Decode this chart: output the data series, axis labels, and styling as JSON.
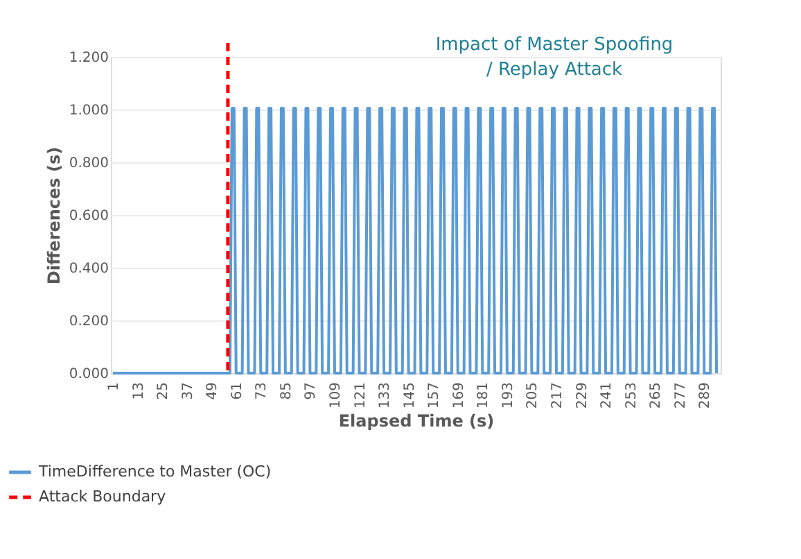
{
  "chart_data": {
    "type": "line",
    "xlabel": "Elapsed Time (s)",
    "ylabel": "Differences  (s)",
    "annotations": [
      "Impact of Master Spoofing / Replay Attack"
    ],
    "series": [
      {
        "name": "TimeDifference to Master (OC)",
        "color": "#5b9bd5",
        "x": [
          1,
          58,
          59,
          60,
          61,
          64,
          65,
          66,
          67,
          70,
          71,
          72,
          73,
          76,
          77,
          78,
          79,
          82,
          83,
          84,
          85,
          88,
          89,
          90,
          91,
          94,
          95,
          96,
          97,
          100,
          101,
          102,
          103,
          106,
          107,
          108,
          109,
          112,
          113,
          114,
          115,
          118,
          119,
          120,
          121,
          124,
          125,
          126,
          127,
          130,
          131,
          132,
          133,
          136,
          137,
          138,
          139,
          142,
          143,
          144,
          145,
          148,
          149,
          150,
          151,
          154,
          155,
          156,
          157,
          160,
          161,
          162,
          163,
          166,
          167,
          168,
          169,
          172,
          173,
          174,
          175,
          178,
          179,
          180,
          181,
          184,
          185,
          186,
          187,
          190,
          191,
          192,
          193,
          196,
          197,
          198,
          199,
          202,
          203,
          204,
          205,
          208,
          209,
          210,
          211,
          214,
          215,
          216,
          217,
          220,
          221,
          222,
          223,
          226,
          227,
          228,
          229,
          232,
          233,
          234,
          235,
          238,
          239,
          240,
          241,
          244,
          245,
          246,
          247,
          250,
          251,
          252,
          253,
          256,
          257,
          258,
          259,
          262,
          263,
          264,
          265,
          268,
          269,
          270,
          271,
          274,
          275,
          276,
          277,
          280,
          281,
          282,
          283,
          286,
          287,
          288,
          289,
          292,
          293,
          294,
          295
        ],
        "values": [
          0,
          0,
          1.005,
          1.005,
          0,
          0,
          1.005,
          1.005,
          0,
          0,
          1.005,
          1.005,
          0,
          0,
          1.005,
          1.005,
          0,
          0,
          1.005,
          1.005,
          0,
          0,
          1.005,
          1.005,
          0,
          0,
          1.005,
          1.005,
          0,
          0,
          1.005,
          1.005,
          0,
          0,
          1.005,
          1.005,
          0,
          0,
          1.005,
          1.005,
          0,
          0,
          1.005,
          1.005,
          0,
          0,
          1.005,
          1.005,
          0,
          0,
          1.005,
          1.005,
          0,
          0,
          1.005,
          1.005,
          0,
          0,
          1.005,
          1.005,
          0,
          0,
          1.005,
          1.005,
          0,
          0,
          1.005,
          1.005,
          0,
          0,
          1.005,
          1.005,
          0,
          0,
          1.005,
          1.005,
          0,
          0,
          1.005,
          1.005,
          0,
          0,
          1.005,
          1.005,
          0,
          0,
          1.005,
          1.005,
          0,
          0,
          1.005,
          1.005,
          0,
          0,
          1.005,
          1.005,
          0,
          0,
          1.005,
          1.005,
          0,
          0,
          1.005,
          1.005,
          0,
          0,
          1.005,
          1.005,
          0,
          0,
          1.005,
          1.005,
          0,
          0,
          1.005,
          1.005,
          0,
          0,
          1.005,
          1.005,
          0,
          0,
          1.005,
          1.005,
          0,
          0,
          1.005,
          1.005,
          0,
          0,
          1.005,
          1.005,
          0,
          0,
          1.005,
          1.005,
          0,
          0,
          1.005,
          1.005,
          0,
          0,
          1.005,
          1.005,
          0,
          0,
          1.005,
          1.005,
          0,
          0,
          1.005,
          1.005,
          0,
          0,
          1.005,
          1.005,
          0,
          0,
          1.005,
          1.005,
          0
        ]
      }
    ],
    "ref_lines": [
      {
        "axis": "x",
        "value": 57,
        "label": "Attack Boundary",
        "color": "#ff0000",
        "line_style": "dashed"
      }
    ],
    "xlim": [
      0,
      297
    ],
    "xticks": [
      1,
      13,
      25,
      37,
      49,
      61,
      73,
      85,
      97,
      109,
      121,
      133,
      145,
      157,
      169,
      181,
      193,
      205,
      217,
      229,
      241,
      253,
      265,
      277,
      289
    ],
    "ylim": [
      0,
      1.2
    ],
    "yticks": [
      {
        "value": 0,
        "label": "0.000"
      },
      {
        "value": 0.2,
        "label": "0.200"
      },
      {
        "value": 0.4,
        "label": "0.400"
      },
      {
        "value": 0.6,
        "label": "0.600"
      },
      {
        "value": 0.8,
        "label": "0.800"
      },
      {
        "value": 1.0,
        "label": "1.000"
      },
      {
        "value": 1.2,
        "label": "1.200"
      }
    ],
    "grid": "y",
    "legend": "bottom left",
    "marker": "none",
    "line_style": "solid"
  }
}
